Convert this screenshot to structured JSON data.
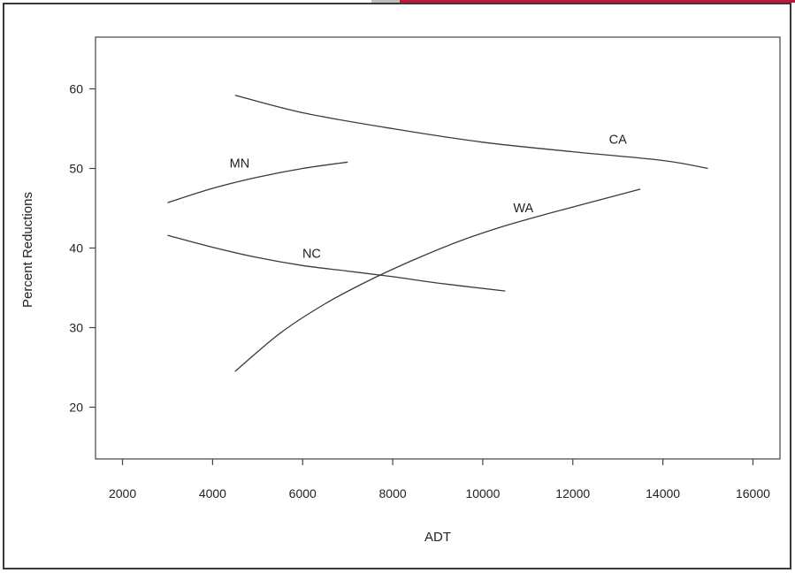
{
  "chart_data": {
    "type": "line",
    "xlabel": "ADT",
    "ylabel": "Percent Reductions",
    "xlim": [
      1400,
      16600
    ],
    "ylim": [
      13.5,
      66.5
    ],
    "x_ticks": [
      2000,
      4000,
      6000,
      8000,
      10000,
      12000,
      14000,
      16000
    ],
    "y_ticks": [
      20,
      30,
      40,
      50,
      60
    ],
    "series": [
      {
        "name": "CA",
        "points": [
          [
            4500,
            59.2
          ],
          [
            6000,
            57.0
          ],
          [
            8000,
            55.0
          ],
          [
            10000,
            53.3
          ],
          [
            12000,
            52.1
          ],
          [
            14000,
            51.0
          ],
          [
            15000,
            50.0
          ]
        ],
        "label_at": [
          13000,
          53.1
        ]
      },
      {
        "name": "MN",
        "points": [
          [
            3000,
            45.7
          ],
          [
            4000,
            47.5
          ],
          [
            5000,
            48.9
          ],
          [
            6000,
            50.0
          ],
          [
            7000,
            50.8
          ]
        ],
        "label_at": [
          4600,
          50.1
        ]
      },
      {
        "name": "NC",
        "points": [
          [
            3000,
            41.6
          ],
          [
            4000,
            40.1
          ],
          [
            5000,
            38.8
          ],
          [
            6000,
            37.8
          ],
          [
            7000,
            37.1
          ],
          [
            8000,
            36.4
          ],
          [
            9000,
            35.6
          ],
          [
            10500,
            34.6
          ]
        ],
        "label_at": [
          6200,
          38.8
        ]
      },
      {
        "name": "WA",
        "points": [
          [
            4500,
            24.5
          ],
          [
            5500,
            29.3
          ],
          [
            6500,
            33.0
          ],
          [
            7500,
            36.0
          ],
          [
            8500,
            38.6
          ],
          [
            9500,
            40.9
          ],
          [
            10500,
            42.8
          ],
          [
            11500,
            44.4
          ],
          [
            12500,
            45.9
          ],
          [
            13500,
            47.4
          ]
        ],
        "label_at": [
          10900,
          44.5
        ]
      }
    ],
    "grid": false,
    "legend": "none"
  }
}
